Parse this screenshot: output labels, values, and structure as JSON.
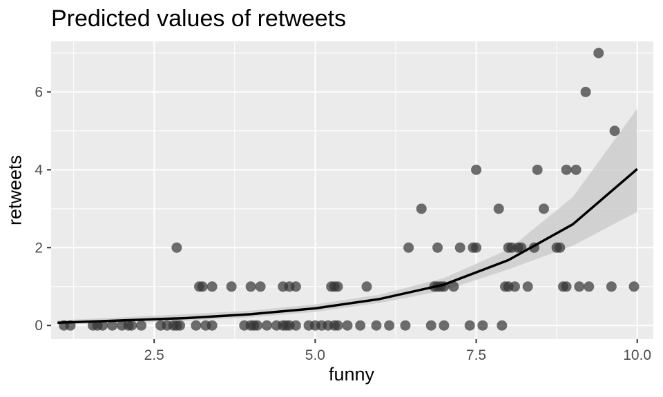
{
  "chart_data": {
    "type": "scatter",
    "title": "Predicted values of retweets",
    "xlabel": "funny",
    "ylabel": "retweets",
    "xlim": [
      0.9,
      10.25
    ],
    "ylim": [
      -0.35,
      7.3
    ],
    "x_ticks": [
      2.5,
      5.0,
      7.5,
      10.0
    ],
    "x_tick_labels": [
      "2.5",
      "5.0",
      "7.5",
      "10.0"
    ],
    "y_ticks": [
      0,
      2,
      4,
      6
    ],
    "y_tick_labels": [
      "0",
      "2",
      "4",
      "6"
    ],
    "grid": true,
    "legend": "none",
    "colors": {
      "panel_background": "#ebebeb",
      "grid": "#ffffff",
      "points": "#333333",
      "prediction_line": "#000000",
      "confidence_band": "#c8c8c8"
    },
    "series": [
      {
        "type": "scatter",
        "points": [
          [
            1.1,
            0
          ],
          [
            1.2,
            0
          ],
          [
            1.55,
            0
          ],
          [
            1.62,
            0
          ],
          [
            1.7,
            0
          ],
          [
            1.85,
            0
          ],
          [
            2.0,
            0
          ],
          [
            2.1,
            0
          ],
          [
            2.15,
            0
          ],
          [
            2.3,
            0
          ],
          [
            2.6,
            0
          ],
          [
            2.7,
            0
          ],
          [
            2.8,
            0
          ],
          [
            2.85,
            0
          ],
          [
            2.9,
            0
          ],
          [
            3.15,
            0
          ],
          [
            3.3,
            0
          ],
          [
            3.4,
            0
          ],
          [
            3.9,
            0
          ],
          [
            4.0,
            0
          ],
          [
            4.05,
            0
          ],
          [
            4.1,
            0
          ],
          [
            4.25,
            0
          ],
          [
            4.4,
            0
          ],
          [
            4.5,
            0
          ],
          [
            4.55,
            0
          ],
          [
            4.6,
            0
          ],
          [
            4.7,
            0
          ],
          [
            4.9,
            0
          ],
          [
            5.0,
            0
          ],
          [
            5.1,
            0
          ],
          [
            5.2,
            0
          ],
          [
            5.3,
            0
          ],
          [
            5.35,
            0
          ],
          [
            5.5,
            0
          ],
          [
            5.7,
            0
          ],
          [
            5.95,
            0
          ],
          [
            6.15,
            0
          ],
          [
            6.4,
            0
          ],
          [
            6.8,
            0
          ],
          [
            7.0,
            0
          ],
          [
            7.4,
            0
          ],
          [
            7.6,
            0
          ],
          [
            7.9,
            0
          ],
          [
            3.2,
            1
          ],
          [
            3.25,
            1
          ],
          [
            3.4,
            1
          ],
          [
            3.7,
            1
          ],
          [
            4.0,
            1
          ],
          [
            4.15,
            1
          ],
          [
            4.5,
            1
          ],
          [
            4.6,
            1
          ],
          [
            4.7,
            1
          ],
          [
            5.25,
            1
          ],
          [
            5.3,
            1
          ],
          [
            5.35,
            1
          ],
          [
            5.8,
            1
          ],
          [
            6.85,
            1
          ],
          [
            6.9,
            1
          ],
          [
            6.95,
            1
          ],
          [
            7.0,
            1
          ],
          [
            7.15,
            1
          ],
          [
            7.95,
            1
          ],
          [
            8.0,
            1
          ],
          [
            8.1,
            1
          ],
          [
            8.3,
            1
          ],
          [
            8.85,
            1
          ],
          [
            8.9,
            1
          ],
          [
            9.1,
            1
          ],
          [
            9.25,
            1
          ],
          [
            9.6,
            1
          ],
          [
            9.95,
            1
          ],
          [
            2.85,
            2
          ],
          [
            6.45,
            2
          ],
          [
            6.9,
            2
          ],
          [
            7.25,
            2
          ],
          [
            7.45,
            2
          ],
          [
            7.5,
            2
          ],
          [
            8.0,
            2
          ],
          [
            8.05,
            2
          ],
          [
            8.15,
            2
          ],
          [
            8.2,
            2
          ],
          [
            8.4,
            2
          ],
          [
            8.75,
            2
          ],
          [
            8.8,
            2
          ],
          [
            6.65,
            3
          ],
          [
            7.85,
            3
          ],
          [
            8.55,
            3
          ],
          [
            7.5,
            4
          ],
          [
            8.45,
            4
          ],
          [
            8.9,
            4
          ],
          [
            9.05,
            4
          ],
          [
            9.65,
            5
          ],
          [
            9.2,
            6
          ],
          [
            9.4,
            7
          ]
        ]
      },
      {
        "type": "line",
        "x": [
          1.0,
          2.0,
          3.0,
          4.0,
          5.0,
          6.0,
          7.0,
          8.0,
          9.0,
          10.0
        ],
        "y": [
          0.07,
          0.13,
          0.19,
          0.29,
          0.44,
          0.68,
          1.05,
          1.68,
          2.6,
          4.02
        ],
        "ci_lower": [
          0.03,
          0.07,
          0.12,
          0.21,
          0.35,
          0.58,
          0.9,
          1.44,
          2.05,
          2.92
        ],
        "ci_upper": [
          0.13,
          0.21,
          0.29,
          0.38,
          0.54,
          0.79,
          1.22,
          1.95,
          3.3,
          5.57
        ]
      }
    ]
  }
}
